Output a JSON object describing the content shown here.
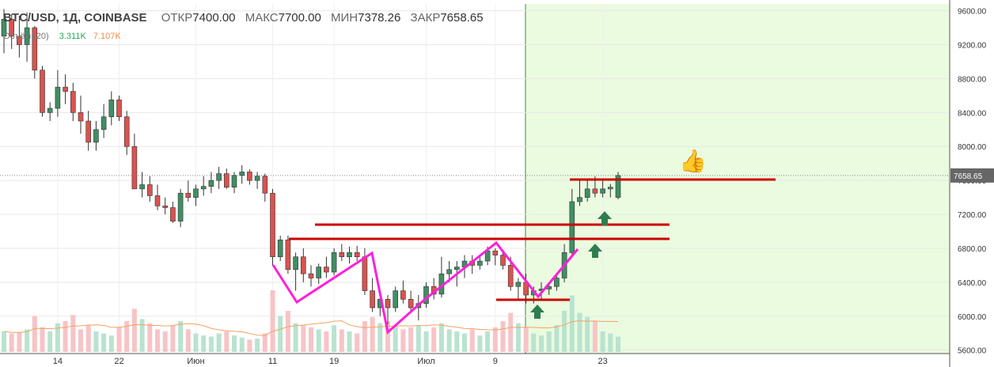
{
  "header": {
    "symbol": "BTC/USD, 1Д, COINBASE",
    "open_label": "ОТКР",
    "open_value": "7400.00",
    "high_label": "МАКС",
    "high_value": "7700.00",
    "low_label": "МИН",
    "low_value": "7378.26",
    "close_label": "ЗАКР",
    "close_value": "7658.65"
  },
  "volume": {
    "label": "Объём (20)",
    "value1": "3.311K",
    "value2": "7.107K"
  },
  "colors": {
    "up": "#3f8f64",
    "down": "#d9534f",
    "vol_up": "#b9e3cf",
    "vol_down": "#f7c4c6",
    "highlight_bg": "#eafbe0",
    "trend": "#ff1fd8",
    "level": "#cc0000",
    "arrow": "#2f7d4f",
    "ma": "#f4a261"
  },
  "thumb_icon": "thumbs-up-icon",
  "chart_data": {
    "type": "candlestick",
    "yaxis_ticks": [
      "9600.00",
      "9200.00",
      "8800.00",
      "8400.00",
      "8000.00",
      "7600.00",
      "7200.00",
      "6800.00",
      "6400.00",
      "6000.00",
      "5600.00"
    ],
    "ylim": [
      5560,
      9680
    ],
    "last_price_label": "7658.65",
    "xaxis_ticks": [
      {
        "label": "14",
        "index": 7
      },
      {
        "label": "22",
        "index": 15
      },
      {
        "label": "Июн",
        "index": 25
      },
      {
        "label": "11",
        "index": 35
      },
      {
        "label": "19",
        "index": 43
      },
      {
        "label": "Июл",
        "index": 55
      },
      {
        "label": "9",
        "index": 64
      },
      {
        "label": "23",
        "index": 78
      }
    ],
    "candles": [
      [
        9300,
        9620,
        9100,
        9500
      ],
      [
        9500,
        9560,
        9150,
        9300
      ],
      [
        9300,
        9540,
        9050,
        9200
      ],
      [
        9200,
        9580,
        9000,
        9400
      ],
      [
        9400,
        9420,
        8800,
        8900
      ],
      [
        8900,
        8950,
        8350,
        8400
      ],
      [
        8400,
        8520,
        8300,
        8450
      ],
      [
        8450,
        8900,
        8350,
        8700
      ],
      [
        8700,
        8850,
        8500,
        8650
      ],
      [
        8650,
        8750,
        8300,
        8400
      ],
      [
        8400,
        8600,
        8150,
        8300
      ],
      [
        8300,
        8420,
        7950,
        8050
      ],
      [
        8050,
        8300,
        7950,
        8200
      ],
      [
        8200,
        8500,
        8100,
        8350
      ],
      [
        8350,
        8650,
        8250,
        8550
      ],
      [
        8550,
        8600,
        8300,
        8350
      ],
      [
        8350,
        8420,
        7900,
        8000
      ],
      [
        8000,
        8150,
        7500,
        7500
      ],
      [
        7500,
        7700,
        7400,
        7550
      ],
      [
        7550,
        7650,
        7350,
        7420
      ],
      [
        7420,
        7550,
        7250,
        7300
      ],
      [
        7300,
        7400,
        7200,
        7280
      ],
      [
        7280,
        7350,
        7100,
        7120
      ],
      [
        7120,
        7500,
        7050,
        7450
      ],
      [
        7450,
        7600,
        7350,
        7400
      ],
      [
        7400,
        7550,
        7300,
        7500
      ],
      [
        7500,
        7650,
        7420,
        7530
      ],
      [
        7530,
        7700,
        7450,
        7600
      ],
      [
        7600,
        7760,
        7500,
        7680
      ],
      [
        7680,
        7740,
        7500,
        7520
      ],
      [
        7520,
        7700,
        7450,
        7660
      ],
      [
        7660,
        7780,
        7560,
        7700
      ],
      [
        7700,
        7730,
        7550,
        7600
      ],
      [
        7600,
        7700,
        7500,
        7650
      ],
      [
        7650,
        7680,
        7350,
        7450
      ],
      [
        7450,
        7500,
        6600,
        6700
      ],
      [
        6700,
        6950,
        6650,
        6900
      ],
      [
        6900,
        6950,
        6500,
        6550
      ],
      [
        6550,
        6750,
        6300,
        6700
      ],
      [
        6700,
        6800,
        6400,
        6500
      ],
      [
        6500,
        6600,
        6350,
        6450
      ],
      [
        6450,
        6620,
        6380,
        6580
      ],
      [
        6580,
        6700,
        6450,
        6520
      ],
      [
        6520,
        6800,
        6480,
        6750
      ],
      [
        6750,
        6850,
        6650,
        6700
      ],
      [
        6700,
        6820,
        6620,
        6750
      ],
      [
        6750,
        6830,
        6650,
        6700
      ],
      [
        6700,
        6800,
        6250,
        6300
      ],
      [
        6300,
        6450,
        6050,
        6100
      ],
      [
        6100,
        6250,
        6000,
        6200
      ],
      [
        6200,
        6250,
        5900,
        6100
      ],
      [
        6100,
        6350,
        6050,
        6300
      ],
      [
        6300,
        6420,
        6150,
        6200
      ],
      [
        6200,
        6300,
        6050,
        6100
      ],
      [
        6100,
        6250,
        5950,
        6150
      ],
      [
        6150,
        6400,
        6100,
        6350
      ],
      [
        6350,
        6450,
        6200,
        6260
      ],
      [
        6260,
        6700,
        6220,
        6500
      ],
      [
        6500,
        6650,
        6400,
        6550
      ],
      [
        6550,
        6650,
        6350,
        6580
      ],
      [
        6580,
        6720,
        6450,
        6650
      ],
      [
        6650,
        6720,
        6500,
        6600
      ],
      [
        6600,
        6700,
        6550,
        6650
      ],
      [
        6650,
        6820,
        6600,
        6770
      ],
      [
        6770,
        6800,
        6600,
        6720
      ],
      [
        6720,
        6750,
        6550,
        6600
      ],
      [
        6600,
        6700,
        6300,
        6350
      ],
      [
        6350,
        6450,
        6200,
        6400
      ],
      [
        6400,
        6500,
        6150,
        6250
      ],
      [
        6250,
        6350,
        6150,
        6300
      ],
      [
        6300,
        6400,
        6200,
        6320
      ],
      [
        6320,
        6400,
        6250,
        6350
      ],
      [
        6350,
        6500,
        6300,
        6450
      ],
      [
        6450,
        6850,
        6400,
        6750
      ],
      [
        6750,
        7500,
        6700,
        7350
      ],
      [
        7350,
        7600,
        7300,
        7400
      ],
      [
        7400,
        7620,
        7350,
        7500
      ],
      [
        7500,
        7650,
        7400,
        7450
      ],
      [
        7450,
        7600,
        7400,
        7500
      ],
      [
        7500,
        7560,
        7400,
        7520
      ],
      [
        7400,
        7700,
        7378,
        7659
      ]
    ],
    "volume_heights": [
      0.2,
      0.18,
      0.19,
      0.22,
      0.35,
      0.24,
      0.2,
      0.28,
      0.3,
      0.36,
      0.22,
      0.26,
      0.2,
      0.18,
      0.16,
      0.24,
      0.3,
      0.42,
      0.32,
      0.28,
      0.22,
      0.2,
      0.26,
      0.3,
      0.22,
      0.18,
      0.16,
      0.15,
      0.18,
      0.2,
      0.16,
      0.14,
      0.12,
      0.13,
      0.18,
      0.6,
      0.35,
      0.4,
      0.28,
      0.26,
      0.24,
      0.22,
      0.2,
      0.26,
      0.22,
      0.2,
      0.18,
      0.3,
      0.34,
      0.28,
      0.3,
      0.25,
      0.22,
      0.24,
      0.26,
      0.2,
      0.24,
      0.28,
      0.22,
      0.2,
      0.18,
      0.22,
      0.16,
      0.2,
      0.24,
      0.3,
      0.38,
      0.28,
      0.24,
      0.18,
      0.16,
      0.2,
      0.26,
      0.4,
      0.55,
      0.38,
      0.34,
      0.3,
      0.2,
      0.18,
      0.15
    ]
  }
}
